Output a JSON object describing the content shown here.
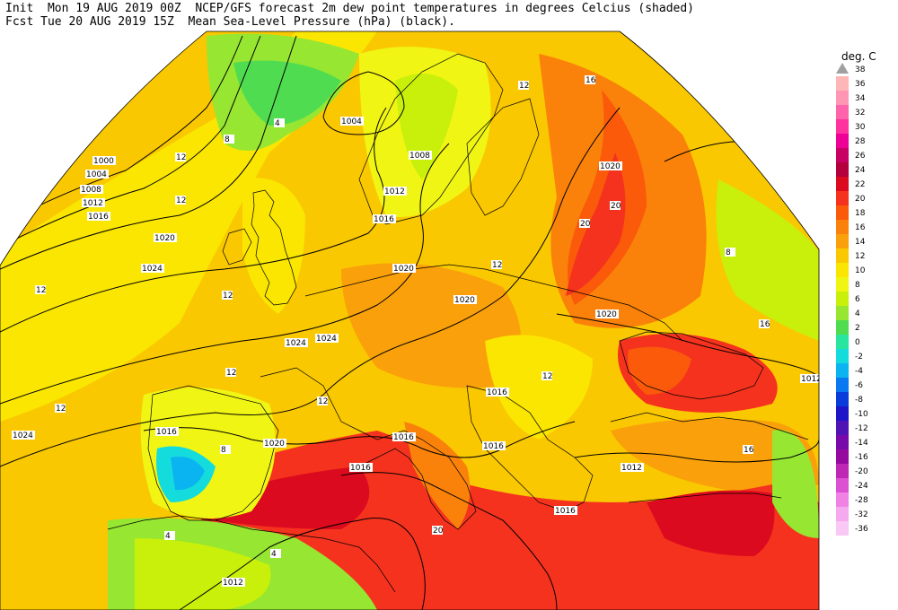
{
  "header": {
    "line1": "Init  Mon 19 AUG 2019 00Z  NCEP/GFS forecast 2m dew point temperatures in degrees Celcius (shaded)",
    "line2": "Fcst Tue 20 AUG 2019 15Z  Mean Sea-Level Pressure (hPa) (black)."
  },
  "legend": {
    "title": "deg. C",
    "levels": [
      {
        "label": "38",
        "color": "#a0a0a0"
      },
      {
        "label": "36",
        "color": "#ffb6b6"
      },
      {
        "label": "34",
        "color": "#ff96b4"
      },
      {
        "label": "32",
        "color": "#ff64aa"
      },
      {
        "label": "30",
        "color": "#ff32a0"
      },
      {
        "label": "28",
        "color": "#ee0096"
      },
      {
        "label": "26",
        "color": "#c80064"
      },
      {
        "label": "24",
        "color": "#b4003c"
      },
      {
        "label": "22",
        "color": "#dc0a1e"
      },
      {
        "label": "20",
        "color": "#f5321e"
      },
      {
        "label": "18",
        "color": "#fa5a0a"
      },
      {
        "label": "16",
        "color": "#fa820a"
      },
      {
        "label": "14",
        "color": "#faa00a"
      },
      {
        "label": "12",
        "color": "#fac800"
      },
      {
        "label": "10",
        "color": "#fae600"
      },
      {
        "label": "8",
        "color": "#f0f514"
      },
      {
        "label": "6",
        "color": "#c8f00a"
      },
      {
        "label": "4",
        "color": "#96e632"
      },
      {
        "label": "2",
        "color": "#50dc50"
      },
      {
        "label": "0",
        "color": "#28e6a0"
      },
      {
        "label": "-2",
        "color": "#14dcdc"
      },
      {
        "label": "-4",
        "color": "#0ab4f0"
      },
      {
        "label": "-6",
        "color": "#0a78f0"
      },
      {
        "label": "-8",
        "color": "#0a3cdc"
      },
      {
        "label": "-10",
        "color": "#1e14c8"
      },
      {
        "label": "-12",
        "color": "#5014b4"
      },
      {
        "label": "-14",
        "color": "#780aaa"
      },
      {
        "label": "-16",
        "color": "#960aa0"
      },
      {
        "label": "-20",
        "color": "#be28b4"
      },
      {
        "label": "-24",
        "color": "#dc50d2"
      },
      {
        "label": "-28",
        "color": "#f082e6"
      },
      {
        "label": "-32",
        "color": "#f5aaf0"
      },
      {
        "label": "-36",
        "color": "#fac8f5"
      }
    ]
  },
  "isobar_labels": [
    "1000",
    "1004",
    "1008",
    "1012",
    "1016",
    "1020",
    "1024",
    "1004",
    "1008",
    "1012",
    "1016",
    "1020",
    "1020",
    "1020",
    "1020",
    "1024",
    "1024",
    "1024",
    "1016",
    "1016",
    "1020",
    "1016",
    "1016",
    "1016",
    "1012",
    "1016",
    "1012",
    "1012"
  ],
  "dew_labels": [
    "4",
    "8",
    "12",
    "12",
    "12",
    "12",
    "12",
    "12",
    "12",
    "12",
    "16",
    "16",
    "20",
    "20",
    "20",
    "16",
    "12",
    "12",
    "8",
    "4",
    "4",
    "8"
  ]
}
